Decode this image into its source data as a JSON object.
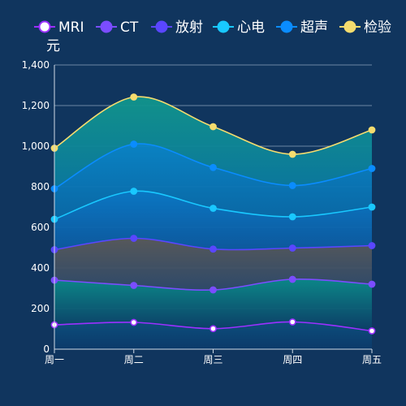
{
  "chart_data": {
    "type": "area",
    "stacked": true,
    "smooth": true,
    "categories": [
      "周一",
      "周二",
      "周三",
      "周四",
      "周五"
    ],
    "unit": "元",
    "ylim": [
      0,
      1400
    ],
    "yticks": [
      0,
      200,
      400,
      600,
      800,
      1000,
      1200,
      1400
    ],
    "grid": true,
    "legend_position": "top",
    "series": [
      {
        "name": "MRI",
        "values": [
          120,
          132,
          101,
          134,
          90
        ],
        "color": "#9b30ff"
      },
      {
        "name": "CT",
        "values": [
          220,
          182,
          191,
          210,
          230
        ],
        "color": "#7b4dff"
      },
      {
        "name": "放射",
        "values": [
          150,
          232,
          201,
          154,
          190
        ],
        "color": "#5a46ff"
      },
      {
        "name": "心电",
        "values": [
          150,
          232,
          201,
          154,
          190
        ],
        "color": "#19c8ff"
      },
      {
        "name": "超声",
        "values": [
          150,
          232,
          201,
          154,
          190
        ],
        "color": "#0a8cff"
      },
      {
        "name": "检验",
        "values": [
          200,
          232,
          201,
          154,
          190
        ],
        "color": "#f5dc6e"
      }
    ]
  }
}
